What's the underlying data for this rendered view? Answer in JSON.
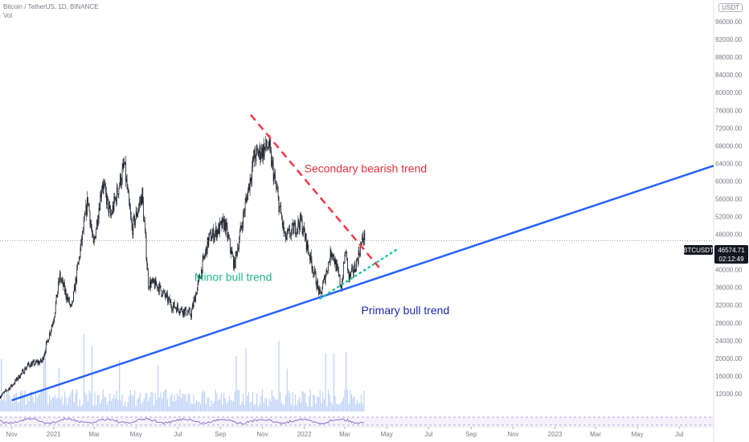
{
  "header": {
    "title": "Bitcoin / TetherUS, 1D, BINANCE",
    "volume_label": "Vol",
    "currency_badge": "USDT"
  },
  "price_tag": {
    "symbol": "BTCUSDT",
    "price": "46574.71",
    "countdown": "02:12:49",
    "value": 46574.71
  },
  "colors": {
    "candle_up": "#26a69a",
    "candle_dn": "#ef5350",
    "volume": "#bcd0f5",
    "primary_trend": "#2962ff",
    "secondary_trend": "#f23645",
    "minor_trend": "#22c7a1",
    "primary_label": "#1e2bb0",
    "secondary_label": "#e0323f",
    "minor_label": "#22b58e",
    "oscillator": "#7e57c2"
  },
  "chart_data": {
    "type": "candlestick",
    "x_tick_labels": [
      "Nov",
      "2021",
      "Mar",
      "May",
      "Jul",
      "Sep",
      "Nov",
      "2022",
      "Mar",
      "May",
      "Jul",
      "Sep",
      "Nov",
      "2023",
      "Mar",
      "May",
      "Jul"
    ],
    "y_tick_labels": [
      "12000.00",
      "16000.00",
      "20000.00",
      "24000.00",
      "28000.00",
      "32000.00",
      "36000.00",
      "40000.00",
      "44000.00",
      "48000.00",
      "52000.00",
      "56000.00",
      "60000.00",
      "64000.00",
      "68000.00",
      "72000.00",
      "76000.00",
      "80000.00",
      "84000.00",
      "88000.00",
      "92000.00",
      "96000.00"
    ],
    "y_ticks": [
      12000,
      16000,
      20000,
      24000,
      28000,
      32000,
      36000,
      40000,
      44000,
      48000,
      52000,
      56000,
      60000,
      64000,
      68000,
      72000,
      76000,
      80000,
      84000,
      88000,
      92000,
      96000
    ],
    "ylim": [
      8000,
      100000
    ],
    "x_range": [
      "2020-10-15",
      "2023-08-20"
    ],
    "x_ticks": [
      "2020-11-01",
      "2021-01-01",
      "2021-03-01",
      "2021-05-01",
      "2021-07-01",
      "2021-09-01",
      "2021-11-01",
      "2022-01-01",
      "2022-03-01",
      "2022-05-01",
      "2022-07-01",
      "2022-09-01",
      "2022-11-01",
      "2023-01-01",
      "2023-03-01",
      "2023-05-01",
      "2023-07-01"
    ],
    "price_path": [
      [
        "2020-10-15",
        11400
      ],
      [
        "2020-11-01",
        13800
      ],
      [
        "2020-11-25",
        18500
      ],
      [
        "2020-12-15",
        19300
      ],
      [
        "2021-01-01",
        29000
      ],
      [
        "2021-01-10",
        38500
      ],
      [
        "2021-01-27",
        31000
      ],
      [
        "2021-02-20",
        56000
      ],
      [
        "2021-02-28",
        45000
      ],
      [
        "2021-03-13",
        60000
      ],
      [
        "2021-03-25",
        52000
      ],
      [
        "2021-04-14",
        63500
      ],
      [
        "2021-04-25",
        49000
      ],
      [
        "2021-05-10",
        57000
      ],
      [
        "2021-05-19",
        37000
      ],
      [
        "2021-06-01",
        36500
      ],
      [
        "2021-06-22",
        32000
      ],
      [
        "2021-07-20",
        30000
      ],
      [
        "2021-08-15",
        47000
      ],
      [
        "2021-09-07",
        50500
      ],
      [
        "2021-09-21",
        41000
      ],
      [
        "2021-10-20",
        65500
      ],
      [
        "2021-11-10",
        68000
      ],
      [
        "2021-12-04",
        47000
      ],
      [
        "2021-12-27",
        51000
      ],
      [
        "2022-01-24",
        34000
      ],
      [
        "2022-02-10",
        44500
      ],
      [
        "2022-02-24",
        36000
      ],
      [
        "2022-03-02",
        44500
      ],
      [
        "2022-03-07",
        38000
      ],
      [
        "2022-03-16",
        40500
      ],
      [
        "2022-03-28",
        47500
      ],
      [
        "2022-03-30",
        46574.71
      ]
    ],
    "trend_lines": [
      {
        "name": "Primary bull trend",
        "style": "solid",
        "points": [
          [
            "2020-11-01",
            10500
          ],
          [
            "2023-08-20",
            63500
          ]
        ]
      },
      {
        "name": "Secondary bearish trend",
        "style": "dashed",
        "points": [
          [
            "2021-10-15",
            75000
          ],
          [
            "2022-04-20",
            40500
          ]
        ]
      },
      {
        "name": "Minor bull trend",
        "style": "dotted",
        "points": [
          [
            "2022-01-24",
            33500
          ],
          [
            "2022-05-15",
            44500
          ]
        ]
      }
    ],
    "annotations": [
      {
        "text": "Secondary bearish trend",
        "x": "2022-01-01",
        "y": 62000,
        "color_key": "secondary_label"
      },
      {
        "text": "Minor bull trend",
        "x": "2021-07-25",
        "y": 37500,
        "color_key": "minor_label"
      },
      {
        "text": "Primary bull trend",
        "x": "2022-03-25",
        "y": 30000,
        "color_key": "primary_label"
      }
    ],
    "last_price": 46574.71,
    "grid": false,
    "volume_pane": true,
    "oscillator_pane": true
  }
}
